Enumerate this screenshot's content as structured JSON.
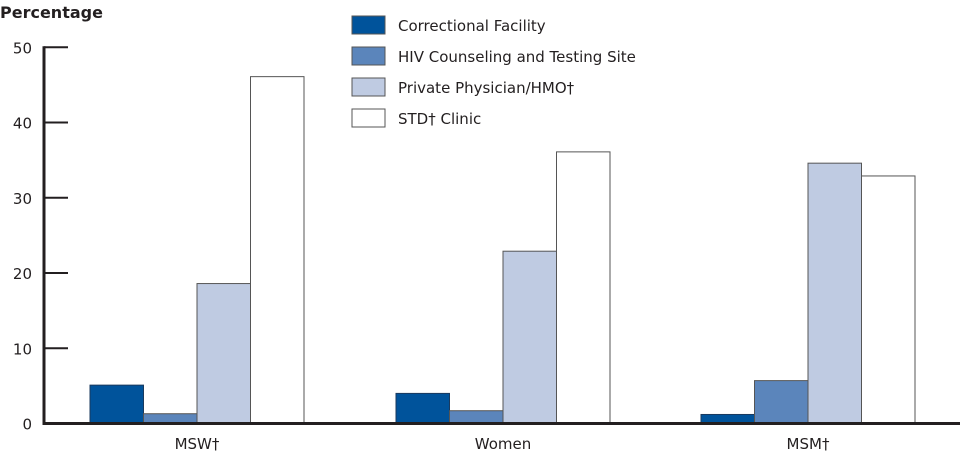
{
  "chart_data": {
    "type": "bar",
    "title": "",
    "xlabel": "",
    "ylabel": "Percentage",
    "ylim": [
      0,
      50
    ],
    "yticks": [
      "0",
      "10",
      "20",
      "30",
      "40",
      "50"
    ],
    "categories": [
      "MSW†",
      "Women",
      "MSM†"
    ],
    "legend_placement": "top-center",
    "grid": false,
    "series": [
      {
        "name": "Correctional Facility",
        "color": "#00539b",
        "values": [
          5.1,
          4.0,
          1.2
        ]
      },
      {
        "name": "HIV Counseling and Testing Site",
        "color": "#5b85bb",
        "values": [
          1.3,
          1.7,
          5.7
        ]
      },
      {
        "name": "Private Physician/HMO†",
        "color": "#bfcbe2",
        "values": [
          18.6,
          22.9,
          34.6
        ]
      },
      {
        "name": "STD† Clinic",
        "color": "#ffffff",
        "values": [
          46.1,
          36.1,
          32.9
        ]
      }
    ]
  }
}
